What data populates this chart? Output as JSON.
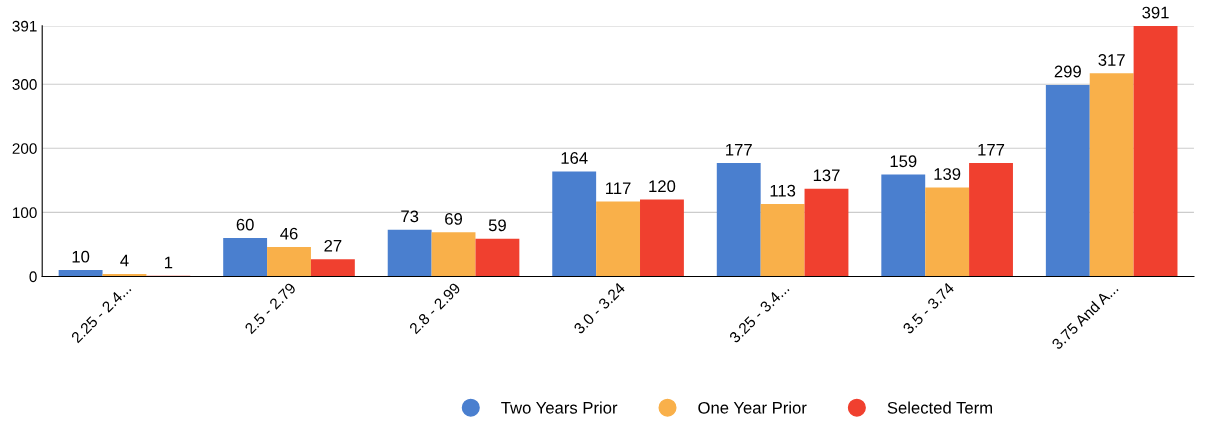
{
  "chart_data": {
    "type": "bar",
    "categories": [
      "2.25 - 2.4...",
      "2.5 - 2.79",
      "2.8 - 2.99",
      "3.0 - 3.24",
      "3.25 - 3.4...",
      "3.5 - 3.74",
      "3.75 And A..."
    ],
    "series": [
      {
        "name": "Two Years Prior",
        "color": "#4a7fcf",
        "values": [
          10,
          60,
          73,
          164,
          177,
          159,
          299
        ]
      },
      {
        "name": "One Year Prior",
        "color": "#f9b04a",
        "values": [
          4,
          46,
          69,
          117,
          113,
          139,
          317
        ]
      },
      {
        "name": "Selected Term",
        "color": "#f0402f",
        "values": [
          1,
          27,
          59,
          120,
          137,
          177,
          391
        ]
      }
    ],
    "ylim": [
      0,
      391
    ],
    "yticks": [
      0,
      100,
      200,
      300,
      391
    ],
    "grid": "y",
    "legend": "bottom",
    "data_labels": true
  }
}
